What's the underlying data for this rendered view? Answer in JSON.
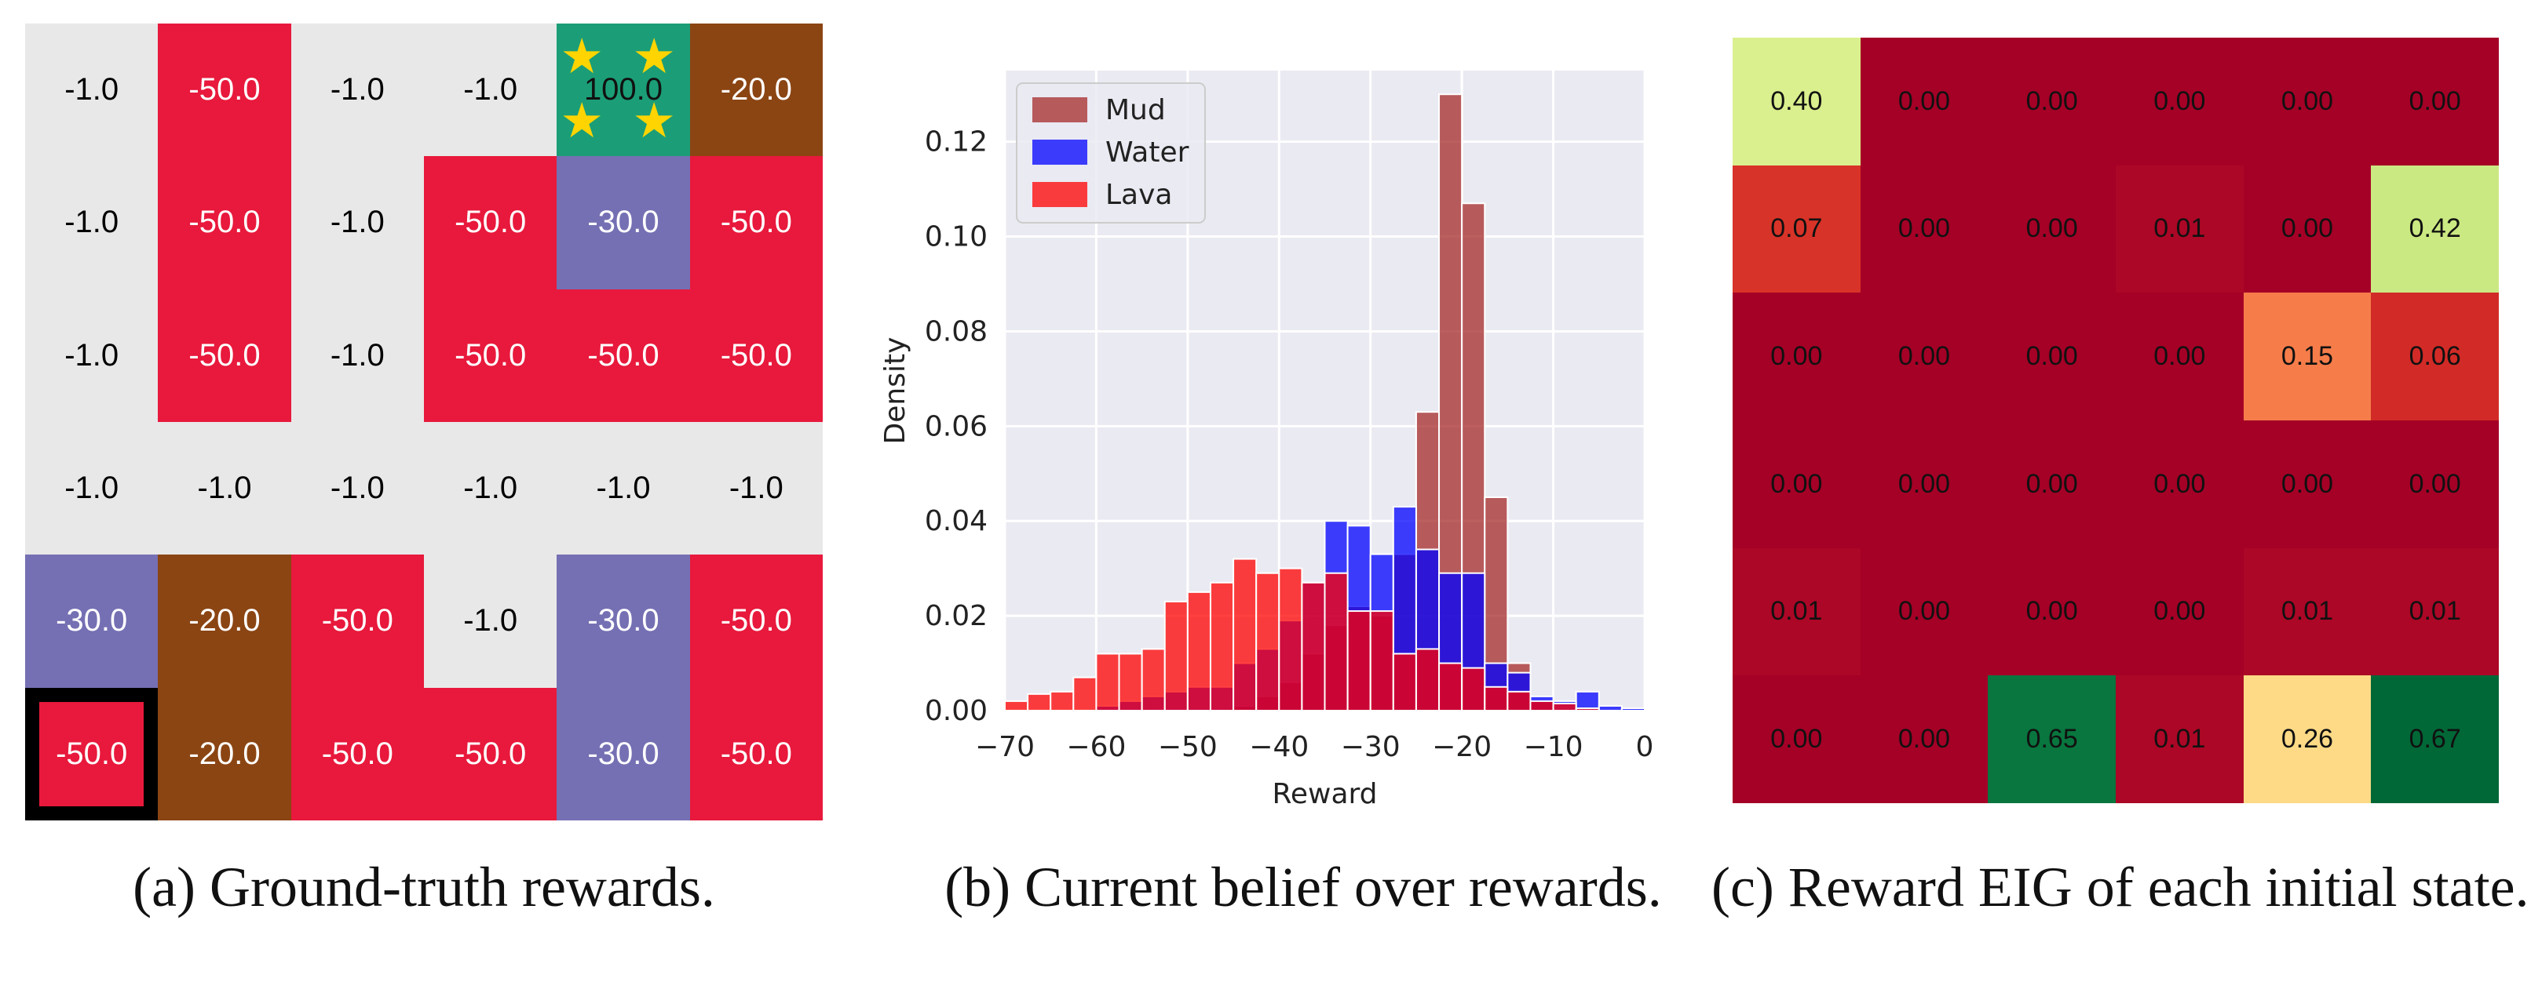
{
  "panel_a": {
    "caption": "(a) Ground-truth rewards.",
    "colors": {
      "-1.0": "#e8e8e8",
      "-50.0": "#e8193c",
      "-30.0": "#7570b3",
      "-20.0": "#8b4513",
      "100.0": "#1b9e77"
    },
    "rows": [
      [
        "-1.0",
        "-50.0",
        "-1.0",
        "-1.0",
        "100.0",
        "-20.0"
      ],
      [
        "-1.0",
        "-50.0",
        "-1.0",
        "-50.0",
        "-30.0",
        "-50.0"
      ],
      [
        "-1.0",
        "-50.0",
        "-1.0",
        "-50.0",
        "-50.0",
        "-50.0"
      ],
      [
        "-1.0",
        "-1.0",
        "-1.0",
        "-1.0",
        "-1.0",
        "-1.0"
      ],
      [
        "-30.0",
        "-20.0",
        "-50.0",
        "-1.0",
        "-30.0",
        "-50.0"
      ],
      [
        "-50.0",
        "-20.0",
        "-50.0",
        "-50.0",
        "-30.0",
        "-50.0"
      ]
    ],
    "goal_icon": "star-icon",
    "start_cell": {
      "row": 5,
      "col": 0
    }
  },
  "panel_b": {
    "caption": "(b) Current belief over rewards."
  },
  "panel_c": {
    "caption": "(c) Reward EIG of each initial state.",
    "rows": [
      [
        "0.40",
        "0.00",
        "0.00",
        "0.00",
        "0.00",
        "0.00"
      ],
      [
        "0.07",
        "0.00",
        "0.00",
        "0.01",
        "0.00",
        "0.42"
      ],
      [
        "0.00",
        "0.00",
        "0.00",
        "0.00",
        "0.15",
        "0.06"
      ],
      [
        "0.00",
        "0.00",
        "0.00",
        "0.00",
        "0.00",
        "0.00"
      ],
      [
        "0.01",
        "0.00",
        "0.00",
        "0.00",
        "0.01",
        "0.01"
      ],
      [
        "0.00",
        "0.00",
        "0.65",
        "0.01",
        "0.26",
        "0.67"
      ]
    ]
  },
  "chart_data": {
    "type": "bar",
    "subtype": "histogram",
    "title": "",
    "xlabel": "Reward",
    "ylabel": "Density",
    "xlim": [
      -70,
      0
    ],
    "ylim": [
      0,
      0.135
    ],
    "xticks": [
      "−70",
      "−60",
      "−50",
      "−40",
      "−30",
      "−20",
      "−10",
      "0"
    ],
    "yticks": [
      "0.00",
      "0.02",
      "0.04",
      "0.06",
      "0.08",
      "0.10",
      "0.12"
    ],
    "grid": true,
    "legend": "top-left",
    "series": [
      {
        "name": "Mud",
        "color": "#a52a2a",
        "bins": [
          [
            -45,
            -42.5,
            0.001
          ],
          [
            -42.5,
            -40,
            0.003
          ],
          [
            -40,
            -37.5,
            0.006
          ],
          [
            -37.5,
            -35,
            0.012
          ],
          [
            -35,
            -32.5,
            0.018
          ],
          [
            -32.5,
            -30,
            0.022
          ],
          [
            -30,
            -27.5,
            0.02
          ],
          [
            -27.5,
            -25,
            0.033
          ],
          [
            -25,
            -22.5,
            0.063
          ],
          [
            -22.5,
            -20,
            0.13
          ],
          [
            -20,
            -17.5,
            0.107
          ],
          [
            -17.5,
            -15,
            0.045
          ],
          [
            -15,
            -12.5,
            0.01
          ],
          [
            -12.5,
            -10,
            0.002
          ]
        ]
      },
      {
        "name": "Water",
        "color": "#0000ff",
        "bins": [
          [
            -60,
            -57.5,
            0.001
          ],
          [
            -57.5,
            -55,
            0.002
          ],
          [
            -55,
            -52.5,
            0.003
          ],
          [
            -52.5,
            -50,
            0.004
          ],
          [
            -50,
            -47.5,
            0.005
          ],
          [
            -47.5,
            -45,
            0.005
          ],
          [
            -45,
            -42.5,
            0.01
          ],
          [
            -42.5,
            -40,
            0.013
          ],
          [
            -40,
            -37.5,
            0.019
          ],
          [
            -37.5,
            -35,
            0.027
          ],
          [
            -35,
            -32.5,
            0.04
          ],
          [
            -32.5,
            -30,
            0.039
          ],
          [
            -30,
            -27.5,
            0.033
          ],
          [
            -27.5,
            -25,
            0.043
          ],
          [
            -25,
            -22.5,
            0.034
          ],
          [
            -22.5,
            -20,
            0.029
          ],
          [
            -20,
            -17.5,
            0.029
          ],
          [
            -17.5,
            -15,
            0.01
          ],
          [
            -15,
            -12.5,
            0.008
          ],
          [
            -12.5,
            -10,
            0.003
          ],
          [
            -10,
            -7.5,
            0.002
          ],
          [
            -7.5,
            -5,
            0.004
          ],
          [
            -5,
            -2.5,
            0.001
          ],
          [
            -2.5,
            0,
            0.0005
          ]
        ]
      },
      {
        "name": "Lava",
        "color": "#ff0000",
        "bins": [
          [
            -70,
            -67.5,
            0.002
          ],
          [
            -67.5,
            -65,
            0.0035
          ],
          [
            -65,
            -62.5,
            0.004
          ],
          [
            -62.5,
            -60,
            0.007
          ],
          [
            -60,
            -57.5,
            0.012
          ],
          [
            -57.5,
            -55,
            0.012
          ],
          [
            -55,
            -52.5,
            0.013
          ],
          [
            -52.5,
            -50,
            0.023
          ],
          [
            -50,
            -47.5,
            0.025
          ],
          [
            -47.5,
            -45,
            0.027
          ],
          [
            -45,
            -42.5,
            0.032
          ],
          [
            -42.5,
            -40,
            0.029
          ],
          [
            -40,
            -37.5,
            0.03
          ],
          [
            -37.5,
            -35,
            0.027
          ],
          [
            -35,
            -32.5,
            0.029
          ],
          [
            -32.5,
            -30,
            0.021
          ],
          [
            -30,
            -27.5,
            0.021
          ],
          [
            -27.5,
            -25,
            0.012
          ],
          [
            -25,
            -22.5,
            0.013
          ],
          [
            -22.5,
            -20,
            0.01
          ],
          [
            -20,
            -17.5,
            0.009
          ],
          [
            -17.5,
            -15,
            0.005
          ],
          [
            -15,
            -12.5,
            0.004
          ],
          [
            -12.5,
            -10,
            0.002
          ],
          [
            -10,
            -7.5,
            0.0015
          ],
          [
            -7.5,
            -5,
            0.0005
          ]
        ]
      }
    ]
  }
}
